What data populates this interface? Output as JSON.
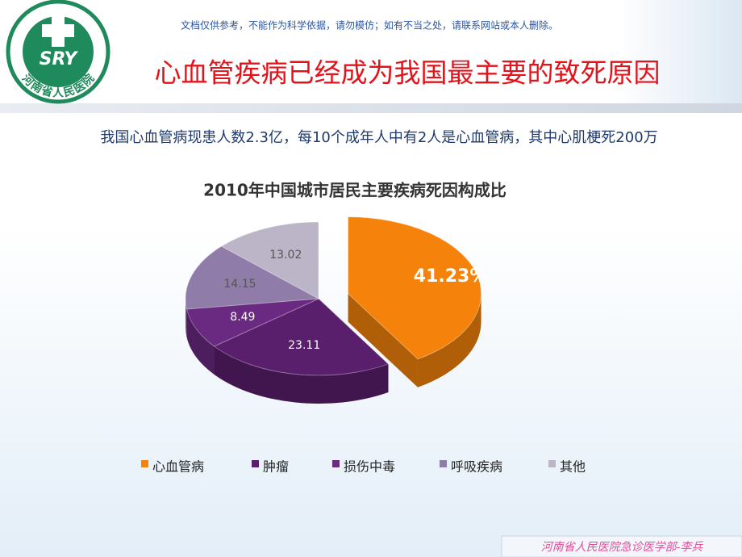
{
  "header": {
    "notice": "文档仅供参考，不能作为科学依据，请勿模仿；如有不当之处，请联系网站或本人删除。",
    "title": "心血管疾病已经成为我国最主要的致死原因",
    "subtitle": "我国心血管病现患人数2.3亿，每10个成年人中有2人是心血管病，其中心肌梗死200万"
  },
  "logo": {
    "mark": "SRY",
    "name": "河南省人民医院"
  },
  "chart_data": {
    "type": "pie",
    "title": "2010年中国城市居民主要疾病死因构成比",
    "categories": [
      "心血管病",
      "肿瘤",
      "损伤中毒",
      "呼吸疾病",
      "其他"
    ],
    "values": [
      41.23,
      23.11,
      8.49,
      14.15,
      13.02
    ],
    "value_labels": [
      "41.23%",
      "23.11",
      "8.49",
      "14.15",
      "13.02"
    ],
    "colors": [
      "#f5820a",
      "#5a1f6c",
      "#6b2a82",
      "#8f7ca8",
      "#bcb5c7"
    ],
    "exploded": [
      true,
      false,
      false,
      false,
      false
    ],
    "legend": "bottom"
  },
  "footer": {
    "text": "河南省人民医院急诊医学部-李兵"
  }
}
